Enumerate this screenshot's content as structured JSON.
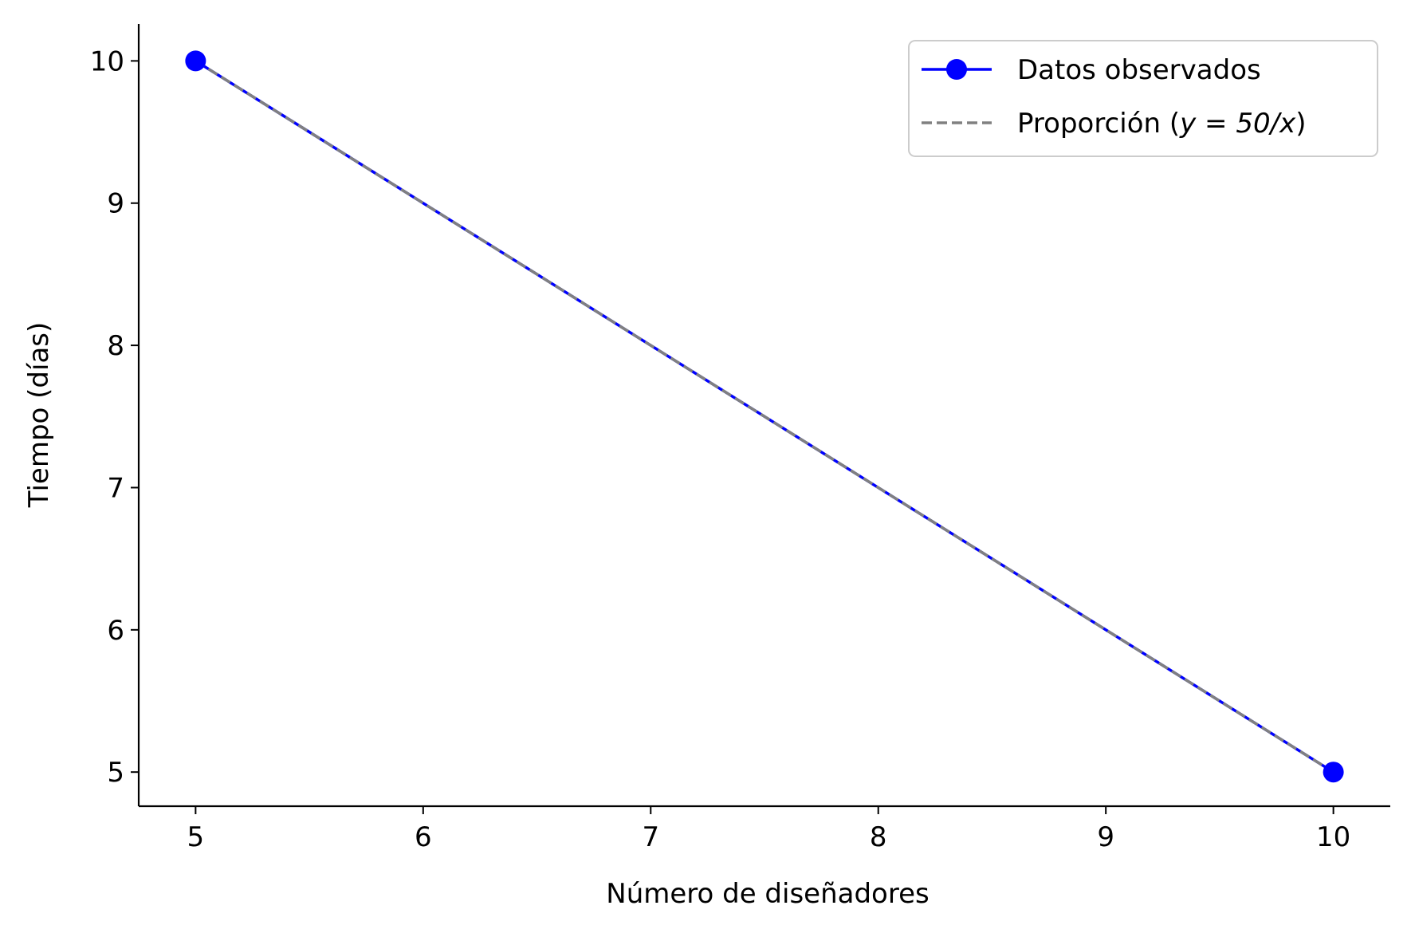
{
  "chart_data": {
    "type": "line",
    "xlabel": "Número de diseñadores",
    "ylabel": "Tiempo (días)",
    "xlim": [
      4.75,
      10.25
    ],
    "ylim": [
      4.76,
      10.26
    ],
    "xticks": [
      5,
      6,
      7,
      8,
      9,
      10
    ],
    "yticks": [
      5,
      6,
      7,
      8,
      9,
      10
    ],
    "grid": false,
    "legend_position": "top-right",
    "series": [
      {
        "name": "Datos observados",
        "style": "solid-with-markers",
        "color": "#0000ff",
        "x": [
          5,
          10
        ],
        "y": [
          10,
          5
        ]
      },
      {
        "name_prefix": "Proporción (",
        "name_math": "y = 50/x",
        "name_suffix": ")",
        "style": "dashed",
        "color": "#808080",
        "x": [
          5,
          10
        ],
        "y": [
          10,
          5
        ]
      }
    ]
  }
}
